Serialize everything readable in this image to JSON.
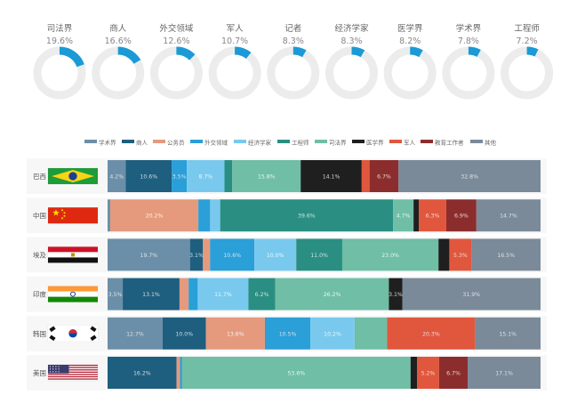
{
  "colors": {
    "ring_bg": "#ececec",
    "ring_fg": "#1b9ad6",
    "ring_label": "#666666",
    "row_bg": "#f7f7f7",
    "axis_text": "#555555"
  },
  "chart_data": [
    {
      "type": "pie",
      "variant": "donut-row",
      "max": 100,
      "items": [
        {
          "label": "司法界",
          "value": 19.6,
          "value_label": "19.6%"
        },
        {
          "label": "商人",
          "value": 16.6,
          "value_label": "16.6%"
        },
        {
          "label": "外交领域",
          "value": 12.6,
          "value_label": "12.6%"
        },
        {
          "label": "军人",
          "value": 10.7,
          "value_label": "10.7%"
        },
        {
          "label": "记者",
          "value": 8.3,
          "value_label": "8.3%"
        },
        {
          "label": "经济学家",
          "value": 8.3,
          "value_label": "8.3%"
        },
        {
          "label": "医学界",
          "value": 8.2,
          "value_label": "8.2%"
        },
        {
          "label": "学术界",
          "value": 7.8,
          "value_label": "7.8%"
        },
        {
          "label": "工程师",
          "value": 7.2,
          "value_label": "7.2%"
        }
      ]
    },
    {
      "type": "bar",
      "orientation": "horizontal",
      "stacked": "percent",
      "legend_position": "top",
      "categories": [
        "巴西",
        "中国",
        "埃及",
        "印度",
        "韩国",
        "美国"
      ],
      "category_icons": [
        "brazil-flag-icon",
        "china-flag-icon",
        "egypt-flag-icon",
        "india-flag-icon",
        "south-korea-flag-icon",
        "usa-flag-icon"
      ],
      "series": [
        {
          "name": "学术界",
          "color": "#6b8fa8",
          "values": [
            4.2,
            0.6,
            19.7,
            3.5,
            12.7,
            0
          ],
          "labels": [
            "4.2%",
            "",
            "19.7%",
            "3.5%",
            "12.7%",
            ""
          ]
        },
        {
          "name": "商人",
          "color": "#1e5e7e",
          "values": [
            10.6,
            0,
            3.1,
            13.1,
            10.0,
            16.2
          ],
          "labels": [
            "10.6%",
            "",
            "3.1%",
            "13.1%",
            "10.0%",
            "16.2%"
          ]
        },
        {
          "name": "公务员",
          "color": "#e59a7e",
          "values": [
            0,
            20.2,
            1.7,
            2.1,
            13.6,
            0.8
          ],
          "labels": [
            "",
            "20.2%",
            "",
            "2.1%",
            "13.6%",
            "0.8%"
          ]
        },
        {
          "name": "外交领域",
          "color": "#2a9fd8",
          "values": [
            3.5,
            2.7,
            10.6,
            2.1,
            10.5,
            0.5
          ],
          "labels": [
            "3.5%",
            "2.7%",
            "10.6%",
            "",
            "10.5%",
            ""
          ]
        },
        {
          "name": "经济学家",
          "color": "#79c9ee",
          "values": [
            8.7,
            2.3,
            10.0,
            11.7,
            10.2,
            0
          ],
          "labels": [
            "8.7%",
            "",
            "10.0%",
            "11.7%",
            "10.2%",
            ""
          ]
        },
        {
          "name": "工程师",
          "color": "#2a8f82",
          "values": [
            1.8,
            39.6,
            11.0,
            6.2,
            0,
            0
          ],
          "labels": [
            "1.8%",
            "39.6%",
            "11.0%",
            "6.2%",
            "",
            ""
          ]
        },
        {
          "name": "司法界",
          "color": "#6fbea5",
          "values": [
            15.8,
            4.7,
            23.0,
            26.2,
            7.5,
            53.6
          ],
          "labels": [
            "15.8%",
            "4.7%",
            "23.0%",
            "26.2%",
            "",
            "53.6%"
          ]
        },
        {
          "name": "医学界",
          "color": "#1f1f1f",
          "values": [
            14.1,
            1.2,
            2.6,
            3.1,
            0,
            1.5
          ],
          "labels": [
            "14.1%",
            "",
            "2.6%",
            "3.1%",
            "",
            "1.5%"
          ]
        },
        {
          "name": "军人",
          "color": "#e0573e",
          "values": [
            1.8,
            6.3,
            5.3,
            0,
            20.3,
            5.2
          ],
          "labels": [
            "1.8%",
            "6.3%",
            "5.3%",
            "",
            "20.3%",
            "5.2%"
          ]
        },
        {
          "name": "教育工作者",
          "color": "#8c2d2d",
          "values": [
            6.7,
            6.9,
            0,
            0,
            0,
            6.7
          ],
          "labels": [
            "6.7%",
            "6.9%",
            "",
            "",
            "",
            "6.7%"
          ]
        },
        {
          "name": "其他",
          "color": "#7a8a99",
          "values": [
            32.8,
            14.7,
            16.5,
            31.9,
            15.1,
            17.1
          ],
          "labels": [
            "32.8%",
            "14.7%",
            "16.5%",
            "31.9%",
            "15.1%",
            "17.1%"
          ]
        }
      ]
    }
  ]
}
